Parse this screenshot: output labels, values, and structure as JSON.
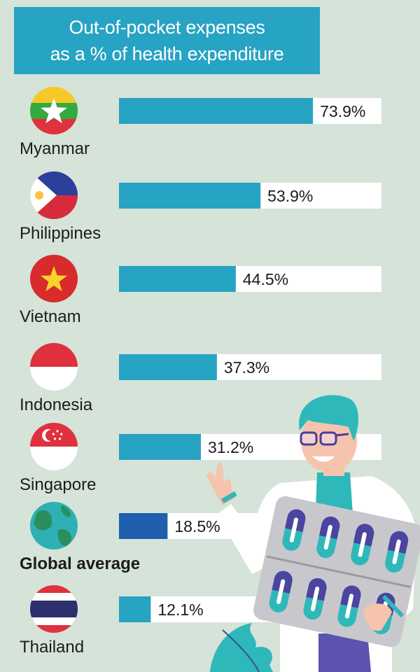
{
  "chart_data": {
    "type": "bar",
    "orientation": "horizontal",
    "title": "Out-of-pocket expenses as a % of health expenditure",
    "title_lines": [
      "Out-of-pocket expenses",
      "as a % of health expenditure"
    ],
    "categories": [
      "Myanmar",
      "Philippines",
      "Vietnam",
      "Indonesia",
      "Singapore",
      "Global average",
      "Thailand"
    ],
    "values": [
      73.9,
      53.9,
      44.5,
      37.3,
      31.2,
      18.5,
      12.1
    ],
    "value_labels": [
      "73.9%",
      "53.9%",
      "44.5%",
      "37.3%",
      "31.2%",
      "18.5%",
      "12.1%"
    ],
    "highlight": "Global average",
    "xlim": [
      0,
      100
    ],
    "grid": false,
    "colors": {
      "bar": "#27a3c3",
      "highlight_bar": "#1f5fae",
      "track": "#ffffff",
      "background": "#d5e3d9",
      "title_bg": "#27a3c3"
    },
    "icons": [
      "myanmar-flag",
      "philippines-flag",
      "vietnam-flag",
      "indonesia-flag",
      "singapore-flag",
      "globe",
      "thailand-flag"
    ]
  }
}
